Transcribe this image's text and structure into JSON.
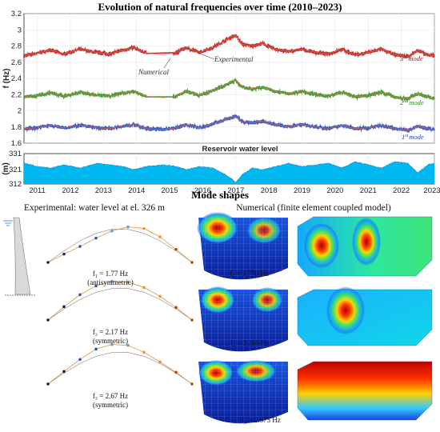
{
  "chart_data": [
    {
      "type": "line",
      "title": "Evolution of natural frequencies over time (2010–2023)",
      "ylabel": "f (Hz)",
      "ylim": [
        1.6,
        3.2
      ],
      "xlim": [
        2010.6,
        2023.0
      ],
      "y_ticks": [
        1.6,
        1.8,
        2.0,
        2.2,
        2.4,
        2.6,
        2.8,
        3.0,
        3.2
      ],
      "y_tick_labels": [
        "1.6",
        "1.8",
        "2",
        "2.2",
        "2.4",
        "2.6",
        "2.8",
        "3",
        "3.2"
      ],
      "grid": true,
      "series": [
        {
          "name": "3rd mode",
          "color": "#b01010",
          "x": [
            2010.6,
            2011.0,
            2011.4,
            2011.8,
            2012.3,
            2012.8,
            2013.2,
            2013.6,
            2013.9,
            2014.3,
            2014.8,
            2015.2,
            2015.5,
            2015.9,
            2016.3,
            2016.6,
            2016.9,
            2017.0,
            2017.2,
            2017.5,
            2017.8,
            2018.2,
            2018.6,
            2019.0,
            2019.4,
            2019.8,
            2020.2,
            2020.6,
            2021.0,
            2021.4,
            2021.8,
            2022.2,
            2022.5,
            2022.8,
            2023.0
          ],
          "values": [
            2.68,
            2.71,
            2.75,
            2.7,
            2.76,
            2.72,
            2.7,
            2.75,
            2.78,
            2.71,
            2.69,
            2.72,
            2.78,
            2.72,
            2.78,
            2.85,
            2.92,
            2.93,
            2.82,
            2.8,
            2.83,
            2.76,
            2.73,
            2.76,
            2.72,
            2.7,
            2.76,
            2.69,
            2.72,
            2.76,
            2.69,
            2.67,
            2.74,
            2.69,
            2.68
          ]
        },
        {
          "name": "2nd mode",
          "color": "#2a8a1a",
          "x": [
            2010.6,
            2011.0,
            2011.4,
            2011.8,
            2012.3,
            2012.8,
            2013.2,
            2013.6,
            2013.9,
            2014.3,
            2014.8,
            2015.2,
            2015.5,
            2015.9,
            2016.3,
            2016.6,
            2016.9,
            2017.0,
            2017.2,
            2017.5,
            2017.8,
            2018.2,
            2018.6,
            2019.0,
            2019.4,
            2019.8,
            2020.2,
            2020.6,
            2021.0,
            2021.4,
            2021.8,
            2022.2,
            2022.5,
            2022.8,
            2023.0
          ],
          "values": [
            2.17,
            2.19,
            2.22,
            2.18,
            2.23,
            2.19,
            2.18,
            2.22,
            2.24,
            2.18,
            2.16,
            2.18,
            2.24,
            2.19,
            2.25,
            2.3,
            2.36,
            2.37,
            2.29,
            2.27,
            2.29,
            2.24,
            2.21,
            2.24,
            2.2,
            2.18,
            2.23,
            2.17,
            2.19,
            2.23,
            2.17,
            2.15,
            2.21,
            2.17,
            2.16
          ]
        },
        {
          "name": "1st mode",
          "color": "#1f3fb0",
          "x": [
            2010.6,
            2011.0,
            2011.4,
            2011.8,
            2012.3,
            2012.8,
            2013.2,
            2013.6,
            2013.9,
            2014.3,
            2014.8,
            2015.2,
            2015.5,
            2015.9,
            2016.3,
            2016.6,
            2016.9,
            2017.0,
            2017.2,
            2017.5,
            2017.8,
            2018.2,
            2018.6,
            2019.0,
            2019.4,
            2019.8,
            2020.2,
            2020.6,
            2021.0,
            2021.4,
            2021.8,
            2022.2,
            2022.5,
            2022.8,
            2023.0
          ],
          "values": [
            1.78,
            1.79,
            1.82,
            1.79,
            1.82,
            1.79,
            1.78,
            1.81,
            1.83,
            1.78,
            1.77,
            1.79,
            1.83,
            1.79,
            1.84,
            1.88,
            1.92,
            1.93,
            1.87,
            1.85,
            1.87,
            1.83,
            1.8,
            1.83,
            1.8,
            1.78,
            1.82,
            1.78,
            1.79,
            1.82,
            1.78,
            1.76,
            1.81,
            1.78,
            1.77
          ]
        }
      ],
      "series_labels": {
        "mode3": {
          "num": "3",
          "suffix": "rd",
          "word": "mode"
        },
        "mode2": {
          "num": "2",
          "suffix": "nd",
          "word": "mode"
        },
        "mode1": {
          "num": "1",
          "suffix": "st",
          "word": "mode"
        }
      },
      "annotations": {
        "experimental": "Experimental",
        "numerical": "Numerical"
      }
    },
    {
      "type": "area",
      "title": "Reservoir water level",
      "ylabel": "(m)",
      "ylim": [
        312,
        331
      ],
      "y_ticks": [
        312,
        321,
        331
      ],
      "y_tick_labels": [
        "312",
        "321",
        "331"
      ],
      "x_ticks": [
        2011,
        2012,
        2013,
        2014,
        2015,
        2016,
        2017,
        2018,
        2019,
        2020,
        2021,
        2022,
        2023
      ],
      "x_tick_labels": [
        "2011",
        "2012",
        "2013",
        "2014",
        "2015",
        "2016",
        "2017",
        "2018",
        "2019",
        "2020",
        "2021",
        "2022",
        "2023"
      ],
      "color": "#00b8f0",
      "x": [
        2010.6,
        2011.0,
        2011.4,
        2011.8,
        2012.3,
        2012.8,
        2013.2,
        2013.6,
        2013.9,
        2014.3,
        2014.8,
        2015.2,
        2015.5,
        2015.9,
        2016.3,
        2016.6,
        2016.9,
        2017.0,
        2017.2,
        2017.5,
        2017.8,
        2018.2,
        2018.6,
        2019.0,
        2019.4,
        2019.8,
        2020.2,
        2020.6,
        2021.0,
        2021.4,
        2021.8,
        2022.2,
        2022.5,
        2022.8,
        2023.0
      ],
      "values": [
        325,
        323,
        322,
        324,
        322,
        325,
        324,
        323,
        321,
        323,
        324,
        323,
        321,
        323,
        322,
        319,
        315,
        313,
        318,
        322,
        321,
        323,
        325,
        323,
        324,
        325,
        322,
        326,
        324,
        322,
        326,
        325,
        319,
        324,
        325
      ]
    }
  ],
  "mode_shapes": {
    "heading": "Mode shapes",
    "experimental_heading": "Experimental: water level at el. 326 m",
    "numerical_heading": "Numerical (finite element coupled model)",
    "experimental": [
      {
        "freq": "f₁ = 1.77 Hz",
        "kind": "(antisymmetric)"
      },
      {
        "freq": "f₂ = 2.17 Hz",
        "kind": "(symmetric)"
      },
      {
        "freq": "f₃ = 2.67 Hz",
        "kind": "(symmetric)"
      }
    ],
    "numerical": [
      {
        "freq": "f₁ = 1.770 Hz"
      },
      {
        "freq": "f₂ = 2.165 Hz"
      },
      {
        "freq": "f₃ = 2.675 Hz"
      }
    ]
  }
}
